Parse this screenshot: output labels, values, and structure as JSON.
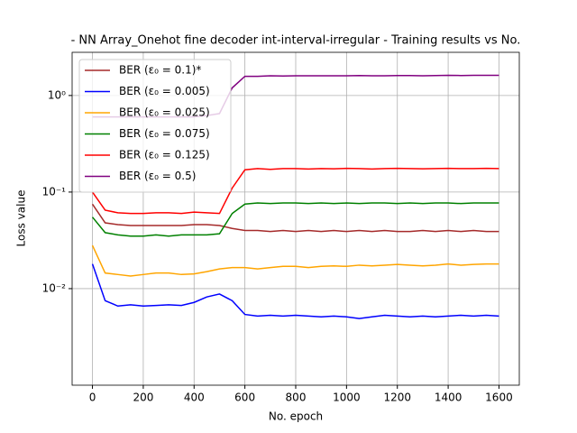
{
  "chart_data": {
    "type": "line",
    "title": "- NN Array_Onehot fine decoder int-interval-irregular - Training results vs No.",
    "x_label": "No. epoch",
    "y_label": "Loss value",
    "x": [
      0,
      50,
      100,
      150,
      200,
      250,
      300,
      350,
      400,
      450,
      500,
      550,
      600,
      650,
      700,
      750,
      800,
      850,
      900,
      950,
      1000,
      1050,
      1100,
      1150,
      1200,
      1250,
      1300,
      1350,
      1400,
      1450,
      1500,
      1550,
      1600
    ],
    "series": [
      {
        "name": "BER (ε₀ = 0.1)*",
        "color": "#a52a2a",
        "values": [
          0.075,
          0.048,
          0.046,
          0.045,
          0.045,
          0.045,
          0.045,
          0.045,
          0.046,
          0.046,
          0.045,
          0.042,
          0.04,
          0.04,
          0.039,
          0.04,
          0.039,
          0.04,
          0.039,
          0.04,
          0.039,
          0.04,
          0.039,
          0.04,
          0.039,
          0.039,
          0.04,
          0.039,
          0.04,
          0.039,
          0.04,
          0.039,
          0.039
        ]
      },
      {
        "name": "BER (ε₀ = 0.005)",
        "color": "#0000ff",
        "values": [
          0.018,
          0.0075,
          0.0066,
          0.0068,
          0.0066,
          0.0067,
          0.0068,
          0.0067,
          0.0072,
          0.0082,
          0.0088,
          0.0075,
          0.0054,
          0.0052,
          0.0053,
          0.0052,
          0.0053,
          0.0052,
          0.0051,
          0.0052,
          0.0051,
          0.0049,
          0.0051,
          0.0053,
          0.0052,
          0.0051,
          0.0052,
          0.0051,
          0.0052,
          0.0053,
          0.0052,
          0.0053,
          0.0052
        ]
      },
      {
        "name": "BER (ε₀ = 0.025)",
        "color": "#ffa500",
        "values": [
          0.028,
          0.0145,
          0.014,
          0.0135,
          0.014,
          0.0145,
          0.0145,
          0.014,
          0.0142,
          0.015,
          0.016,
          0.0165,
          0.0165,
          0.016,
          0.0165,
          0.017,
          0.017,
          0.0165,
          0.017,
          0.0172,
          0.017,
          0.0175,
          0.0172,
          0.0175,
          0.0178,
          0.0175,
          0.0172,
          0.0175,
          0.018,
          0.0175,
          0.0178,
          0.018,
          0.018
        ]
      },
      {
        "name": "BER (ε₀ = 0.075)",
        "color": "#008000",
        "values": [
          0.055,
          0.038,
          0.036,
          0.035,
          0.035,
          0.036,
          0.035,
          0.036,
          0.036,
          0.036,
          0.037,
          0.06,
          0.075,
          0.077,
          0.076,
          0.077,
          0.077,
          0.076,
          0.077,
          0.076,
          0.077,
          0.076,
          0.077,
          0.077,
          0.076,
          0.077,
          0.076,
          0.077,
          0.077,
          0.076,
          0.077,
          0.077,
          0.077
        ]
      },
      {
        "name": "BER (ε₀ = 0.125)",
        "color": "#ff0000",
        "values": [
          0.1,
          0.065,
          0.061,
          0.06,
          0.06,
          0.061,
          0.061,
          0.06,
          0.062,
          0.061,
          0.06,
          0.11,
          0.17,
          0.175,
          0.172,
          0.175,
          0.175,
          0.173,
          0.175,
          0.174,
          0.176,
          0.175,
          0.173,
          0.175,
          0.176,
          0.175,
          0.174,
          0.175,
          0.176,
          0.175,
          0.175,
          0.176,
          0.175
        ]
      },
      {
        "name": "BER (ε₀ = 0.5)",
        "color": "#800080",
        "values": [
          0.6,
          0.6,
          0.6,
          0.6,
          0.6,
          0.6,
          0.6,
          0.6,
          0.6,
          0.62,
          0.65,
          1.2,
          1.58,
          1.58,
          1.6,
          1.59,
          1.6,
          1.6,
          1.6,
          1.6,
          1.6,
          1.61,
          1.6,
          1.6,
          1.61,
          1.61,
          1.6,
          1.61,
          1.62,
          1.61,
          1.62,
          1.62,
          1.62
        ]
      }
    ],
    "xlim": [
      -80,
      1680
    ],
    "xticks": [
      0,
      200,
      400,
      600,
      800,
      1000,
      1200,
      1400,
      1600
    ],
    "ylim": [
      0.001,
      2.8
    ],
    "yticks": [
      {
        "value": 0.01,
        "label": "10⁻²"
      },
      {
        "value": 0.1,
        "label": "10⁻¹"
      },
      {
        "value": 1,
        "label": "10⁰"
      }
    ],
    "y_log": true,
    "grid": true,
    "legend": "upper-left"
  }
}
